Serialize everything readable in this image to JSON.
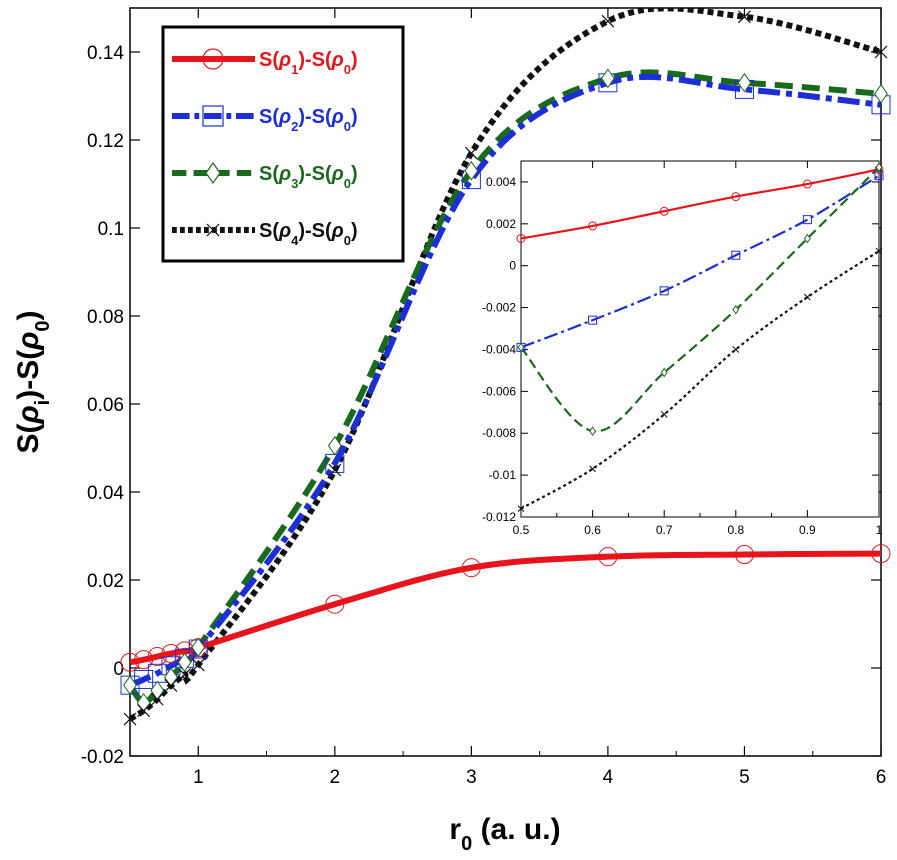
{
  "chart_data": [
    {
      "type": "line",
      "role": "main",
      "title": "",
      "xlabel": {
        "base": "r",
        "sub": "0",
        "rest": " (a. u.)"
      },
      "ylabel": {
        "parts": [
          "S(",
          "ρ",
          "i",
          ")-S(",
          "ρ",
          "0",
          ")"
        ]
      },
      "xlim": [
        0.5,
        6
      ],
      "ylim": [
        -0.02,
        0.15
      ],
      "xticks": [
        1,
        2,
        3,
        4,
        5,
        6
      ],
      "xtick_labels": [
        "1",
        "2",
        "3",
        "4",
        "5",
        "6"
      ],
      "yticks": [
        -0.02,
        0,
        0.02,
        0.04,
        0.06,
        0.08,
        0.1,
        0.12,
        0.14
      ],
      "ytick_labels": [
        "-0.02",
        "0",
        "0.02",
        "0.04",
        "0.06",
        "0.08",
        "0.1",
        "0.12",
        "0.14"
      ],
      "legend_position": "top-left",
      "series": [
        {
          "name": "S(ρ1)-S(ρ0)",
          "label_parts": [
            "S(",
            "ρ",
            "1",
            ")-S(",
            "ρ",
            "0",
            ")"
          ],
          "color": "#e8141b",
          "marker": "circle",
          "dash": "solid",
          "x": [
            0.5,
            0.6,
            0.7,
            0.8,
            0.9,
            1.0,
            2.0,
            3.0,
            4.0,
            5.0,
            6.0
          ],
          "y": [
            0.0013,
            0.0019,
            0.0026,
            0.0033,
            0.0039,
            0.0046,
            0.0145,
            0.0228,
            0.0253,
            0.0258,
            0.026
          ]
        },
        {
          "name": "S(ρ2)-S(ρ0)",
          "label_parts": [
            "S(",
            "ρ",
            "2",
            ")-S(",
            "ρ",
            "0",
            ")"
          ],
          "color": "#1c2fd6",
          "marker": "square",
          "dash": "dashdot",
          "x": [
            0.5,
            0.6,
            0.7,
            0.8,
            0.9,
            1.0,
            2.0,
            3.0,
            4.0,
            5.0,
            6.0
          ],
          "y": [
            -0.0039,
            -0.0026,
            -0.0012,
            0.0005,
            0.0022,
            0.0043,
            0.0465,
            0.111,
            0.133,
            0.1315,
            0.128
          ]
        },
        {
          "name": "S(ρ3)-S(ρ0)",
          "label_parts": [
            "S(",
            "ρ",
            "3",
            ")-S(",
            "ρ",
            "0",
            ")"
          ],
          "color": "#1a6a1e",
          "marker": "diamond",
          "dash": "dashed",
          "x": [
            0.5,
            0.6,
            0.7,
            0.8,
            0.9,
            1.0,
            2.0,
            3.0,
            4.0,
            5.0,
            6.0
          ],
          "y": [
            -0.0039,
            -0.0079,
            -0.0051,
            -0.0021,
            0.0013,
            0.0047,
            0.0505,
            0.113,
            0.134,
            0.133,
            0.1305
          ]
        },
        {
          "name": "S(ρ4)-S(ρ0)",
          "label_parts": [
            "S(",
            "ρ",
            "4",
            ")-S(",
            "ρ",
            "0",
            ")"
          ],
          "color": "#111111",
          "marker": "x",
          "dash": "dotted",
          "x": [
            0.5,
            0.6,
            0.7,
            0.8,
            0.9,
            1.0,
            2.0,
            3.0,
            4.0,
            5.0,
            6.0
          ],
          "y": [
            -0.0116,
            -0.0097,
            -0.0071,
            -0.004,
            -0.0015,
            0.0007,
            0.045,
            0.117,
            0.147,
            0.148,
            0.14
          ]
        }
      ]
    },
    {
      "type": "line",
      "role": "inset",
      "title": "",
      "xlim": [
        0.5,
        1.0
      ],
      "ylim": [
        -0.012,
        0.005
      ],
      "xticks": [
        0.5,
        0.6,
        0.7,
        0.8,
        0.9,
        1.0
      ],
      "xtick_labels": [
        "0.5",
        "0.6",
        "0.7",
        "0.8",
        "0.9",
        "1"
      ],
      "yticks": [
        -0.012,
        -0.01,
        -0.008,
        -0.006,
        -0.004,
        -0.002,
        0,
        0.002,
        0.004
      ],
      "ytick_labels": [
        "-0.012",
        "-0.01",
        "-0.008",
        "-0.006",
        "-0.004",
        "-0.002",
        "0",
        "0.002",
        "0.004"
      ],
      "series_ref": "same x/y as main series, restricted to x in [0.5, 1.0]"
    }
  ]
}
